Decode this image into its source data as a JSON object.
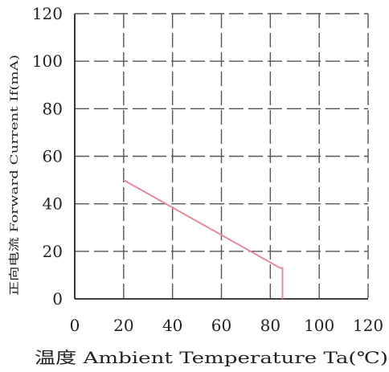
{
  "chart_data": {
    "type": "line",
    "xlabel": "温度 Ambient Temperature Ta(℃)",
    "ylabel": "正向电流 Forward Current If(mA)",
    "xlim": [
      0,
      120
    ],
    "ylim": [
      0,
      120
    ],
    "x_ticks": [
      "0",
      "20",
      "40",
      "60",
      "80",
      "100",
      "120"
    ],
    "y_ticks": [
      "0",
      "20",
      "40",
      "60",
      "80",
      "100",
      "120"
    ],
    "grid": "dashed",
    "series": [
      {
        "x": [
          20,
          84,
          85,
          85
        ],
        "y": [
          50,
          13,
          13,
          0
        ]
      }
    ],
    "colors": {
      "line": "#e88a9a",
      "grid": "#555555",
      "axis": "#222222",
      "text": "#222222"
    }
  }
}
